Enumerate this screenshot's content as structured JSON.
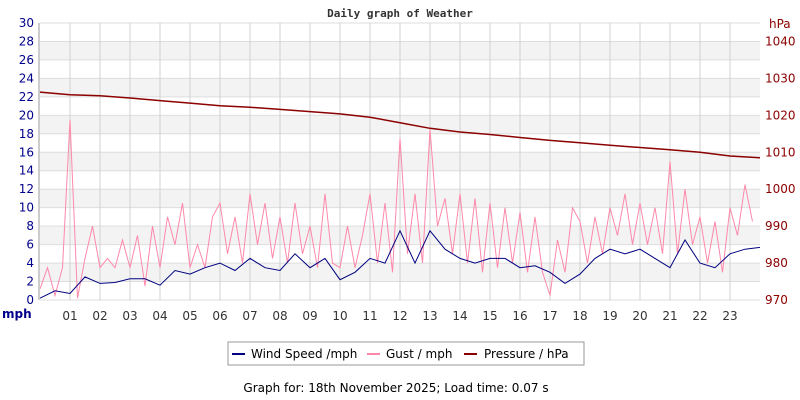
{
  "chart_data": {
    "type": "line",
    "title": "Daily graph of Weather",
    "footer": "Graph for: 18th November 2025; Load time: 0.07 s",
    "x_ticks": [
      "01",
      "02",
      "03",
      "04",
      "05",
      "06",
      "07",
      "08",
      "09",
      "10",
      "11",
      "12",
      "13",
      "14",
      "15",
      "16",
      "17",
      "18",
      "19",
      "20",
      "21",
      "22",
      "23"
    ],
    "xlim": [
      0,
      24
    ],
    "left_axis": {
      "label": "mph",
      "ylim": [
        0,
        30
      ],
      "ticks": [
        0,
        2,
        4,
        6,
        8,
        10,
        12,
        14,
        16,
        18,
        20,
        22,
        24,
        26,
        28,
        30
      ],
      "color": "#00008b"
    },
    "right_axis": {
      "label": "hPa",
      "ylim": [
        970,
        1045
      ],
      "ticks": [
        970,
        980,
        990,
        1000,
        1010,
        1020,
        1030,
        1040
      ],
      "color": "#8b0000"
    },
    "grid": true,
    "legend_position": "bottom",
    "series": [
      {
        "name": "Wind Speed /mph",
        "axis": "left",
        "color": "#000080",
        "x_step_hours": 0.5,
        "values": [
          0.2,
          1.0,
          0.7,
          2.5,
          1.8,
          1.9,
          2.3,
          2.3,
          1.6,
          3.2,
          2.8,
          3.5,
          4.0,
          3.2,
          4.5,
          3.5,
          3.2,
          5.0,
          3.5,
          4.5,
          2.2,
          3.0,
          4.5,
          4.0,
          7.5,
          4.0,
          7.5,
          5.5,
          4.5,
          4.0,
          4.5,
          4.5,
          3.5,
          3.7,
          3.0,
          1.8,
          2.8,
          4.5,
          5.5,
          5.0,
          5.5,
          4.5,
          3.5,
          6.5,
          4.0,
          3.5,
          5.0,
          5.5,
          5.7
        ]
      },
      {
        "name": "Gust / mph",
        "axis": "left",
        "color": "#ff88aa",
        "x_step_hours": 0.25,
        "values": [
          1.2,
          3.5,
          0.5,
          3.5,
          19.5,
          0.2,
          4.5,
          8,
          3.5,
          4.5,
          3.5,
          6.5,
          3.5,
          7,
          1.5,
          8,
          3.5,
          9,
          6,
          10.5,
          3.5,
          6,
          3.5,
          9,
          10.5,
          5,
          9,
          4,
          11.5,
          6,
          10.5,
          4.5,
          9,
          4,
          10.5,
          5,
          8,
          3.5,
          11.5,
          4,
          3.5,
          8,
          3.5,
          7,
          11.5,
          4,
          10.5,
          3,
          17.5,
          5,
          11.5,
          4,
          18.5,
          8,
          11,
          5,
          11.5,
          4,
          11,
          3,
          10.5,
          3.5,
          10,
          4,
          9.5,
          3,
          9,
          3,
          0.5,
          6.5,
          3,
          10,
          8.5,
          4,
          9,
          5,
          10,
          7,
          11.5,
          6,
          10.5,
          6,
          10,
          5,
          15,
          5,
          12,
          6,
          9,
          4,
          8.5,
          3,
          10,
          7,
          12.5,
          8.5
        ]
      },
      {
        "name": "Pressure / hPa",
        "axis": "right",
        "color": "#8b0000",
        "x_step_hours": 1,
        "values": [
          1026.3,
          1025.6,
          1025.3,
          1024.7,
          1024.0,
          1023.3,
          1022.6,
          1022.2,
          1021.6,
          1021.0,
          1020.4,
          1019.5,
          1018.0,
          1016.5,
          1015.5,
          1014.8,
          1014.0,
          1013.2,
          1012.6,
          1011.9,
          1011.3,
          1010.7,
          1010.0,
          1009.0,
          1008.5
        ]
      }
    ]
  }
}
